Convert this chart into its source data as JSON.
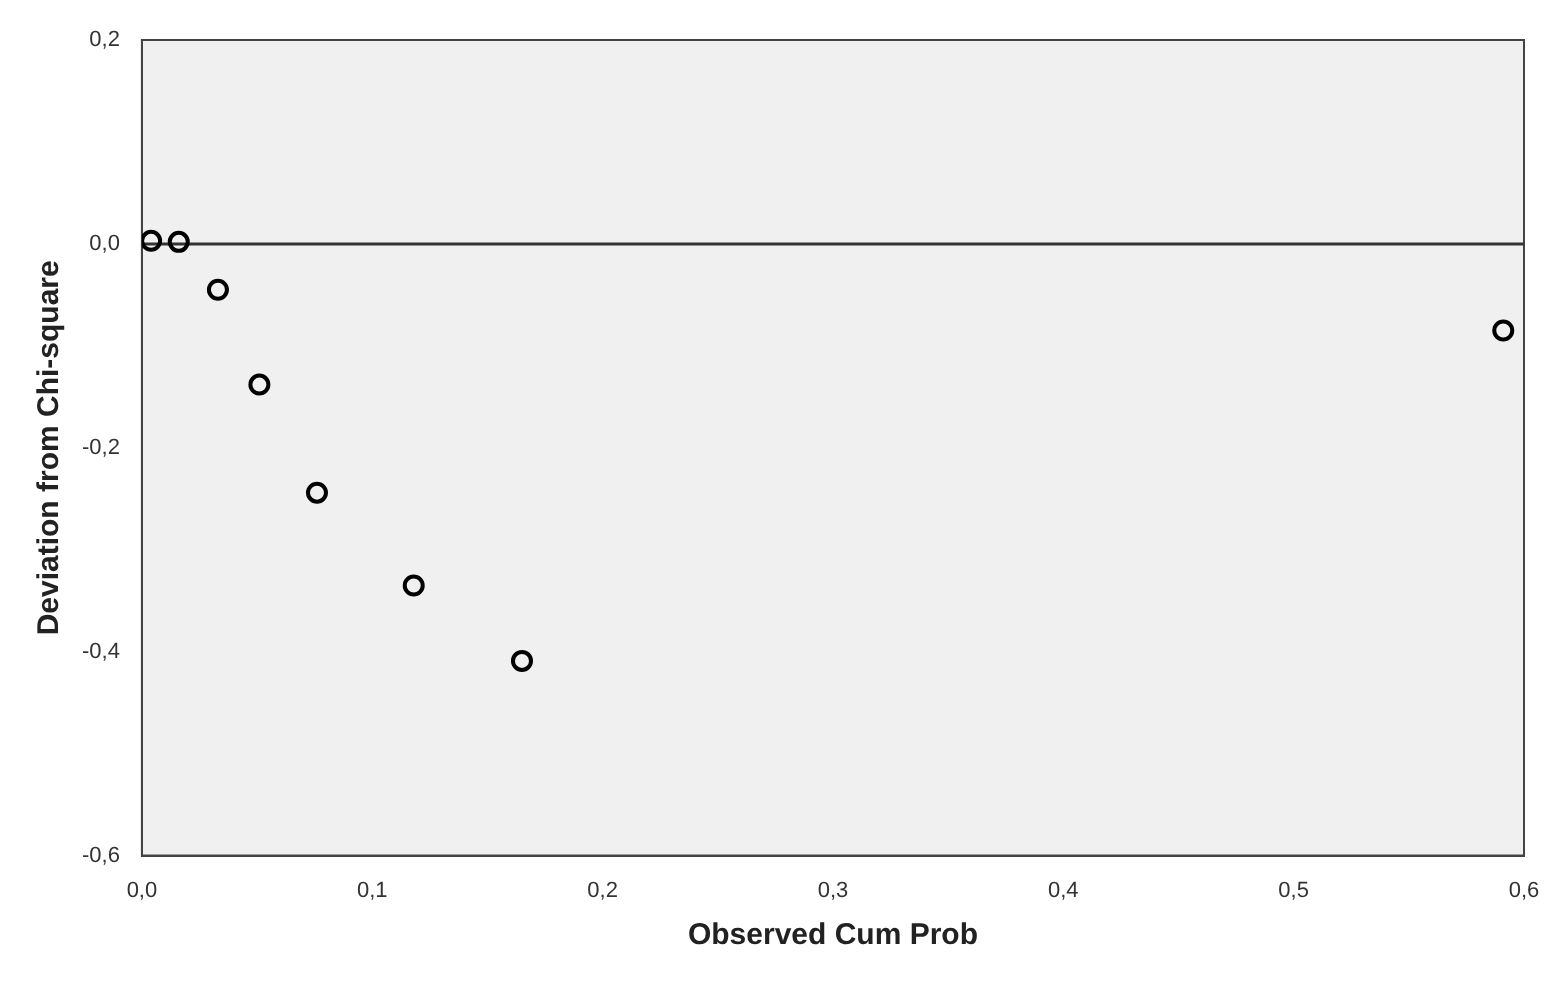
{
  "chart_data": {
    "type": "scatter",
    "xlabel": "Observed Cum Prob",
    "ylabel": "Deviation from Chi-square",
    "x": [
      0.004,
      0.016,
      0.033,
      0.051,
      0.076,
      0.118,
      0.165,
      0.591
    ],
    "series": [
      {
        "color": "#000000",
        "values": [
          0.003,
          0.002,
          -0.045,
          -0.138,
          -0.244,
          -0.335,
          -0.409,
          -0.085
        ]
      }
    ],
    "xlim": [
      0,
      0.6
    ],
    "ylim": [
      -0.6,
      0.2
    ],
    "xticks": [
      {
        "value": 0,
        "label": "0,0"
      },
      {
        "value": 0.1,
        "label": "0,1"
      },
      {
        "value": 0.2,
        "label": "0,2"
      },
      {
        "value": 0.3,
        "label": "0,3"
      },
      {
        "value": 0.4,
        "label": "0,4"
      },
      {
        "value": 0.5,
        "label": "0,5"
      },
      {
        "value": 0.6,
        "label": "0,6"
      }
    ],
    "yticks": [
      {
        "value": -0.6,
        "label": "-0,6"
      },
      {
        "value": -0.4,
        "label": "-0,4"
      },
      {
        "value": -0.2,
        "label": "-0,2"
      },
      {
        "value": 0,
        "label": "0,0"
      },
      {
        "value": 0.2,
        "label": "0,2"
      }
    ],
    "ref_lines": [
      {
        "axis": "y",
        "value": 0,
        "color": "#333333"
      }
    ],
    "marker": "circle",
    "grid": false,
    "legend": false
  }
}
